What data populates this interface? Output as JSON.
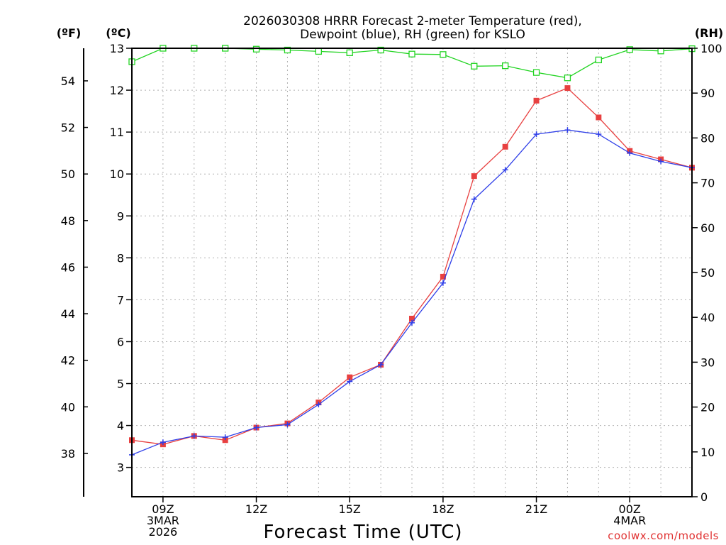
{
  "chart_data": {
    "type": "line",
    "title": [
      "2026030308 HRRR Forecast 2-meter Temperature (red),",
      "Dewpoint (blue), RH (green) for KSLO"
    ],
    "xlabel": "Forecast Time (UTC)",
    "credit": "coolwx.com/models",
    "units": {
      "fahrenheit": "(ºF)",
      "celsius": "(ºC)",
      "rh": "(RH)"
    },
    "x_hours": [
      8,
      9,
      10,
      11,
      12,
      13,
      14,
      15,
      16,
      17,
      18,
      19,
      20,
      21,
      22,
      23,
      24,
      25,
      26
    ],
    "x_ticks": [
      {
        "hour": 9,
        "lines": [
          "09Z",
          "3MAR",
          "2026"
        ]
      },
      {
        "hour": 12,
        "lines": [
          "12Z"
        ]
      },
      {
        "hour": 15,
        "lines": [
          "15Z"
        ]
      },
      {
        "hour": 18,
        "lines": [
          "18Z"
        ]
      },
      {
        "hour": 21,
        "lines": [
          "21Z"
        ]
      },
      {
        "hour": 24,
        "lines": [
          "00Z",
          "4MAR"
        ]
      }
    ],
    "xlim": [
      8,
      26
    ],
    "celsius_lim": [
      2.3,
      13.0
    ],
    "celsius_ticks": [
      3,
      4,
      5,
      6,
      7,
      8,
      9,
      10,
      11,
      12,
      13
    ],
    "fahrenheit_ticks": [
      38,
      40,
      42,
      44,
      46,
      48,
      50,
      52,
      54
    ],
    "rh_lim": [
      0,
      100
    ],
    "rh_ticks": [
      0,
      10,
      20,
      30,
      40,
      50,
      60,
      70,
      80,
      90,
      100
    ],
    "series": [
      {
        "name": "Temperature",
        "axis": "celsius",
        "color": "#e84040",
        "marker": "filled-square",
        "values": [
          3.65,
          3.55,
          3.75,
          3.65,
          3.95,
          4.05,
          4.55,
          5.15,
          5.45,
          6.55,
          7.55,
          9.95,
          10.65,
          11.75,
          12.05,
          11.35,
          10.55,
          10.35,
          10.15
        ]
      },
      {
        "name": "Dewpoint",
        "axis": "celsius",
        "color": "#2e3ee8",
        "marker": "plus",
        "values": [
          3.3,
          3.6,
          3.75,
          3.72,
          3.95,
          4.02,
          4.5,
          5.05,
          5.45,
          6.45,
          7.4,
          9.4,
          10.1,
          10.95,
          11.05,
          10.95,
          10.5,
          10.3,
          10.15
        ]
      },
      {
        "name": "RH",
        "axis": "rh",
        "color": "#22d422",
        "marker": "open-square",
        "values": [
          97,
          100,
          100,
          100,
          99.8,
          99.6,
          99.3,
          99,
          99.6,
          98.7,
          98.6,
          96,
          96.1,
          94.6,
          93.4,
          97.4,
          99.7,
          99.4,
          99.9
        ]
      }
    ]
  }
}
